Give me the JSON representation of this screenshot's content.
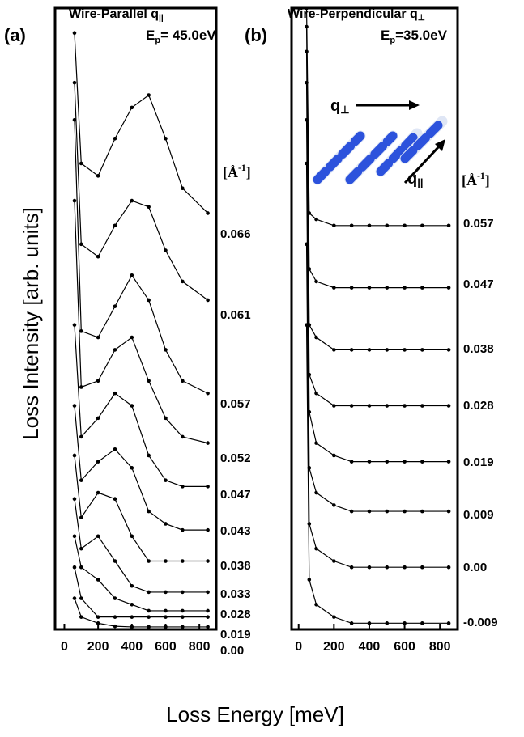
{
  "chart_data": [
    {
      "type": "line",
      "panel_label": "(a)",
      "title": [
        "Wire-Parallel  q",
        "||"
      ],
      "energy": [
        "E",
        "p",
        "= 45.0eV"
      ],
      "unit": [
        "[Å",
        "-1",
        "]"
      ],
      "x_label": "Loss Energy [meV]",
      "y_label": "Loss Intensity [arb. units]",
      "color": "#000000",
      "x": [
        60,
        100,
        200,
        300,
        400,
        500,
        600,
        700,
        850
      ],
      "xlim": [
        -55,
        900
      ],
      "xticks": [
        0,
        200,
        400,
        600,
        800
      ],
      "ylim": [
        0,
        100
      ],
      "series": [
        {
          "name": "0.066",
          "values": [
            96,
            75,
            73,
            79,
            84,
            86,
            79,
            71,
            67
          ]
        },
        {
          "name": "0.061",
          "values": [
            88,
            62,
            60,
            65,
            69,
            68,
            61,
            56,
            53
          ]
        },
        {
          "name": "0.057",
          "values": [
            82,
            48,
            47,
            52,
            57,
            53,
            45,
            40,
            38
          ]
        },
        {
          "name": "0.052",
          "values": [
            69,
            39,
            40,
            45,
            47,
            40,
            34,
            31,
            30
          ]
        },
        {
          "name": "0.047",
          "values": [
            49,
            31,
            34,
            38,
            36,
            28,
            24,
            23,
            23
          ]
        },
        {
          "name": "0.043",
          "values": [
            36,
            24,
            27,
            29,
            26,
            19,
            17,
            16,
            16
          ]
        },
        {
          "name": "0.038",
          "values": [
            28,
            18,
            22,
            21,
            15,
            11,
            11,
            11,
            11
          ]
        },
        {
          "name": "0.033",
          "values": [
            21,
            13,
            15,
            11,
            7,
            6,
            6,
            6,
            6
          ]
        },
        {
          "name": "0.028",
          "values": [
            15,
            10,
            8,
            5,
            4,
            3,
            3,
            3,
            3
          ]
        },
        {
          "name": "0.019",
          "values": [
            10,
            5,
            2,
            2,
            2,
            2,
            2,
            2,
            2
          ]
        },
        {
          "name": "0.00",
          "values": [
            5,
            2,
            1,
            0.5,
            0.4,
            0.4,
            0.4,
            0.4,
            0.4
          ]
        }
      ]
    },
    {
      "type": "line",
      "panel_label": "(b)",
      "title": [
        "Wire-Perpendicular  q",
        "⊥"
      ],
      "energy": [
        "E",
        "p",
        "=35.0eV"
      ],
      "unit": [
        "[Å",
        "-1",
        "]"
      ],
      "inset_labels": [
        [
          "q",
          "⊥"
        ],
        [
          "q",
          "||"
        ]
      ],
      "color": "#000000",
      "x": [
        45,
        60,
        100,
        200,
        300,
        400,
        500,
        600,
        700,
        850
      ],
      "xlim": [
        -40,
        900
      ],
      "xticks": [
        0,
        200,
        400,
        600,
        800
      ],
      "ylim": [
        0,
        100
      ],
      "series": [
        {
          "name": "0.057",
          "values": [
            100,
            67,
            66,
            65,
            65,
            65,
            65,
            65,
            65,
            65
          ]
        },
        {
          "name": "0.047",
          "values": [
            97,
            58,
            56,
            55,
            55,
            55,
            55,
            55,
            55,
            55
          ]
        },
        {
          "name": "0.038",
          "values": [
            93,
            49,
            47,
            45,
            45,
            45,
            45,
            45,
            45,
            45
          ]
        },
        {
          "name": "0.028",
          "values": [
            88,
            41,
            38,
            36,
            36,
            36,
            36,
            36,
            36,
            36
          ]
        },
        {
          "name": "0.019",
          "values": [
            82,
            35,
            30,
            28,
            27,
            27,
            27,
            27,
            27,
            27
          ]
        },
        {
          "name": "0.009",
          "values": [
            75,
            26,
            22,
            20,
            19,
            19,
            19,
            19,
            19,
            19
          ]
        },
        {
          "name": "0.00",
          "values": [
            62,
            17,
            13,
            11,
            10,
            10,
            10,
            10,
            10,
            10
          ]
        },
        {
          "name": "-0.009",
          "values": [
            49,
            8,
            4,
            2,
            1,
            1,
            1,
            1,
            1,
            1
          ]
        }
      ]
    }
  ]
}
